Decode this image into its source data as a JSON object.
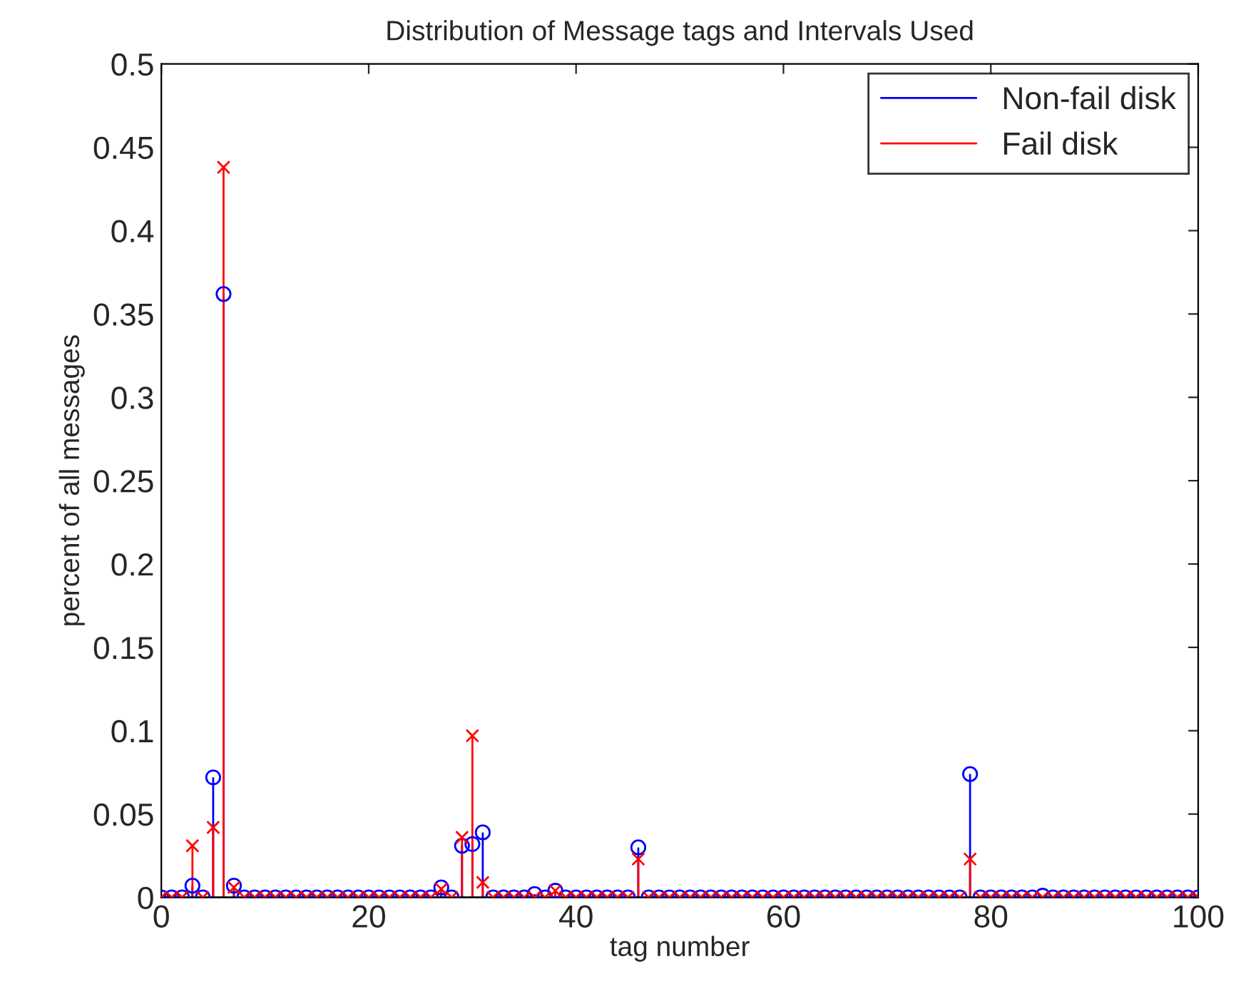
{
  "chart_data": {
    "type": "lollipop",
    "title": "Distribution of Message tags and Intervals Used",
    "xlabel": "tag number",
    "ylabel": "percent of all messages",
    "x": [
      0,
      1,
      2,
      3,
      4,
      5,
      6,
      7,
      8,
      9,
      10,
      11,
      12,
      13,
      14,
      15,
      16,
      17,
      18,
      19,
      20,
      21,
      22,
      23,
      24,
      25,
      26,
      27,
      28,
      29,
      30,
      31,
      32,
      33,
      34,
      35,
      36,
      37,
      38,
      39,
      40,
      41,
      42,
      43,
      44,
      45,
      46,
      47,
      48,
      49,
      50,
      51,
      52,
      53,
      54,
      55,
      56,
      57,
      58,
      59,
      60,
      61,
      62,
      63,
      64,
      65,
      66,
      67,
      68,
      69,
      70,
      71,
      72,
      73,
      74,
      75,
      76,
      77,
      78,
      79,
      80,
      81,
      82,
      83,
      84,
      85,
      86,
      87,
      88,
      89,
      90,
      91,
      92,
      93,
      94,
      95,
      96,
      97,
      98,
      99,
      100
    ],
    "series": [
      {
        "name": "Non-fail disk",
        "color": "#0000ff",
        "marker": "circle",
        "values": [
          0,
          0,
          0,
          0.007,
          0,
          0.072,
          0.362,
          0.007,
          0,
          0,
          0,
          0,
          0,
          0,
          0,
          0,
          0,
          0,
          0,
          0,
          0,
          0,
          0,
          0,
          0,
          0,
          0,
          0.006,
          0,
          0.031,
          0.032,
          0.039,
          0,
          0,
          0,
          0,
          0.002,
          0,
          0.004,
          0,
          0,
          0,
          0,
          0,
          0,
          0,
          0.03,
          0,
          0,
          0,
          0,
          0,
          0,
          0,
          0,
          0,
          0,
          0,
          0,
          0,
          0,
          0,
          0,
          0,
          0,
          0,
          0,
          0,
          0,
          0,
          0,
          0,
          0,
          0,
          0,
          0,
          0,
          0,
          0.074,
          0,
          0,
          0,
          0,
          0,
          0,
          0.001,
          0,
          0,
          0,
          0,
          0,
          0,
          0,
          0,
          0,
          0,
          0,
          0,
          0,
          0,
          0
        ]
      },
      {
        "name": "Fail disk",
        "color": "#ff0000",
        "marker": "cross",
        "values": [
          0,
          0,
          0,
          0.031,
          0,
          0.042,
          0.438,
          0.006,
          0,
          0,
          0,
          0,
          0,
          0,
          0,
          0,
          0,
          0,
          0,
          0,
          0,
          0,
          0,
          0,
          0,
          0,
          0,
          0.005,
          0,
          0.036,
          0.097,
          0.009,
          0,
          0,
          0,
          0,
          0,
          0,
          0.004,
          0,
          0,
          0,
          0,
          0,
          0,
          0,
          0.023,
          0,
          0,
          0,
          0,
          0,
          0,
          0,
          0,
          0,
          0,
          0,
          0,
          0,
          0,
          0,
          0,
          0,
          0,
          0,
          0,
          0,
          0,
          0,
          0,
          0,
          0,
          0,
          0,
          0,
          0,
          0,
          0.023,
          0,
          0,
          0,
          0,
          0,
          0,
          0,
          0,
          0,
          0,
          0,
          0,
          0,
          0,
          0,
          0,
          0,
          0,
          0,
          0,
          0,
          0
        ]
      }
    ],
    "xlim": [
      0,
      100
    ],
    "xticks": [
      0,
      20,
      40,
      60,
      80,
      100
    ],
    "ylim": [
      0,
      0.5
    ],
    "yticks": [
      0,
      0.05,
      0.1,
      0.15,
      0.2,
      0.25,
      0.3,
      0.35,
      0.4,
      0.45,
      0.5
    ],
    "grid": false,
    "legend": "top right"
  }
}
